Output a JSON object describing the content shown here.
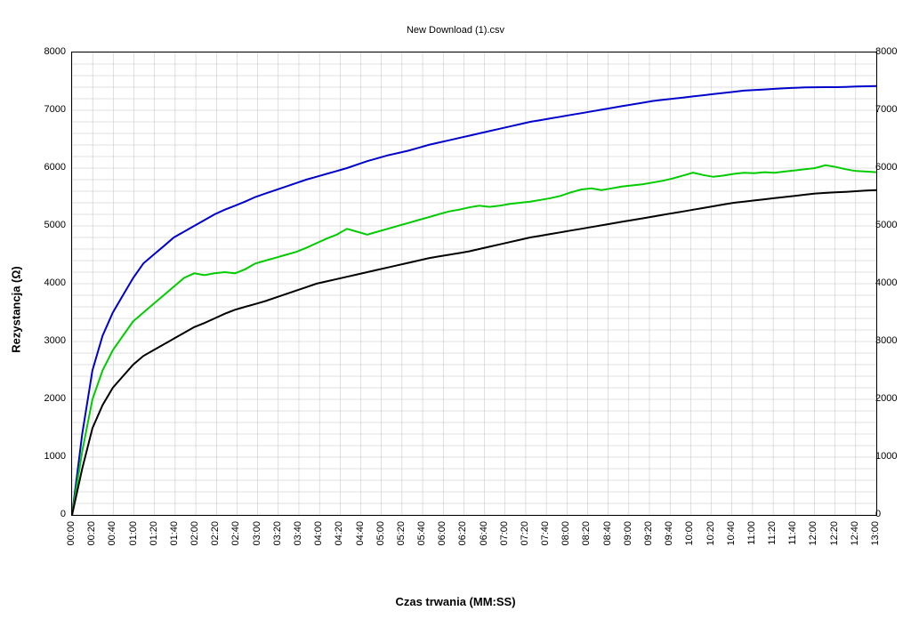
{
  "chart": {
    "type": "line",
    "title": "New Download (1).csv",
    "title_fontsize": 11,
    "xlabel": "Czas trwania (MM:SS)",
    "ylabel": "Rezystancja (Ω)",
    "label_fontsize": 13,
    "background_color": "#ffffff",
    "grid_color": "#c0c0c0",
    "axis_color": "#000000",
    "ylim": [
      0,
      8000
    ],
    "ytick_step": 1000,
    "yticks": [
      0,
      1000,
      2000,
      3000,
      4000,
      5000,
      6000,
      7000,
      8000
    ],
    "x_tick_labels": [
      "00:00",
      "00:20",
      "00:40",
      "01:00",
      "01:20",
      "01:40",
      "02:00",
      "02:20",
      "02:40",
      "03:00",
      "03:20",
      "03:40",
      "04:00",
      "04:20",
      "04:40",
      "05:00",
      "05:20",
      "05:40",
      "06:00",
      "06:20",
      "06:40",
      "07:00",
      "07:20",
      "07:40",
      "08:00",
      "08:20",
      "08:40",
      "09:00",
      "09:20",
      "09:40",
      "10:00",
      "10:20",
      "10:40",
      "11:00",
      "11:20",
      "11:40",
      "12:00",
      "12:20",
      "12:40",
      "13:00"
    ],
    "x_index_max": 39,
    "series": [
      {
        "name": "series-blue",
        "color": "#0000cc",
        "line_width": 2,
        "data": [
          0,
          1400,
          2500,
          3100,
          3500,
          3800,
          4100,
          4350,
          4500,
          4650,
          4800,
          4900,
          5000,
          5100,
          5200,
          5280,
          5350,
          5420,
          5500,
          5560,
          5620,
          5680,
          5740,
          5800,
          5850,
          5900,
          5950,
          6000,
          6060,
          6120,
          6170,
          6220,
          6260,
          6300,
          6350,
          6400,
          6440,
          6480,
          6520,
          6560,
          6600,
          6640,
          6680,
          6720,
          6760,
          6800,
          6830,
          6860,
          6890,
          6920,
          6950,
          6980,
          7010,
          7040,
          7070,
          7100,
          7130,
          7160,
          7180,
          7200,
          7220,
          7240,
          7260,
          7280,
          7300,
          7320,
          7340,
          7350,
          7360,
          7370,
          7380,
          7390,
          7395,
          7398,
          7400,
          7400,
          7405,
          7410,
          7415,
          7420
        ]
      },
      {
        "name": "series-green",
        "color": "#00cc00",
        "line_width": 2,
        "data": [
          0,
          1100,
          2000,
          2500,
          2850,
          3100,
          3350,
          3500,
          3650,
          3800,
          3950,
          4100,
          4180,
          4150,
          4180,
          4200,
          4180,
          4250,
          4350,
          4400,
          4450,
          4500,
          4550,
          4620,
          4700,
          4780,
          4850,
          4950,
          4900,
          4850,
          4900,
          4950,
          5000,
          5050,
          5100,
          5150,
          5200,
          5250,
          5280,
          5320,
          5350,
          5330,
          5350,
          5380,
          5400,
          5420,
          5450,
          5480,
          5520,
          5580,
          5630,
          5650,
          5620,
          5650,
          5680,
          5700,
          5720,
          5750,
          5780,
          5820,
          5870,
          5920,
          5880,
          5850,
          5870,
          5900,
          5920,
          5910,
          5930,
          5920,
          5940,
          5960,
          5980,
          6000,
          6050,
          6020,
          5980,
          5950,
          5940,
          5930
        ]
      },
      {
        "name": "series-black",
        "color": "#000000",
        "line_width": 2,
        "data": [
          0,
          800,
          1500,
          1900,
          2200,
          2400,
          2600,
          2750,
          2850,
          2950,
          3050,
          3150,
          3250,
          3320,
          3400,
          3480,
          3550,
          3600,
          3650,
          3700,
          3760,
          3820,
          3880,
          3940,
          4000,
          4040,
          4080,
          4120,
          4160,
          4200,
          4240,
          4280,
          4320,
          4360,
          4400,
          4440,
          4470,
          4500,
          4530,
          4560,
          4600,
          4640,
          4680,
          4720,
          4760,
          4800,
          4830,
          4860,
          4890,
          4920,
          4950,
          4980,
          5010,
          5040,
          5070,
          5100,
          5130,
          5160,
          5190,
          5220,
          5250,
          5280,
          5310,
          5340,
          5370,
          5400,
          5420,
          5440,
          5460,
          5480,
          5500,
          5520,
          5540,
          5560,
          5570,
          5580,
          5590,
          5600,
          5610,
          5620
        ]
      }
    ]
  }
}
